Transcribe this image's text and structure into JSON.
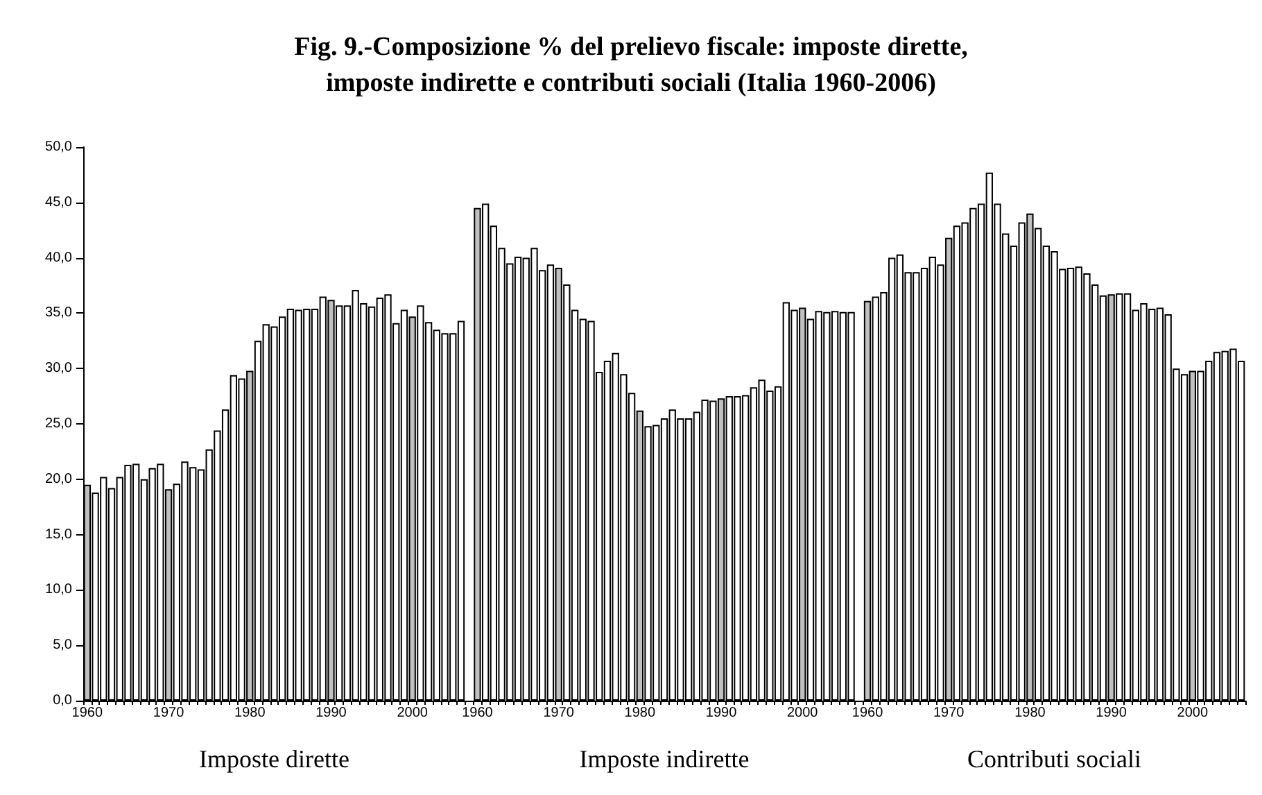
{
  "chart_data": {
    "type": "bar",
    "title": "Fig. 9.-Composizione % del prelievo fiscale: imposte dirette,\nimposte indirette e contributi sociali (Italia 1960-2006)",
    "categories": [
      "1960",
      null,
      null,
      null,
      null,
      null,
      null,
      null,
      null,
      null,
      "1970",
      null,
      null,
      null,
      null,
      null,
      null,
      null,
      null,
      null,
      "1980",
      null,
      null,
      null,
      null,
      null,
      null,
      null,
      null,
      null,
      "1990",
      null,
      null,
      null,
      null,
      null,
      null,
      null,
      null,
      null,
      "2000",
      null,
      null,
      null,
      null,
      null,
      null,
      null,
      "1960",
      null,
      null,
      null,
      null,
      null,
      null,
      null,
      null,
      null,
      "1970",
      null,
      null,
      null,
      null,
      null,
      null,
      null,
      null,
      null,
      "1980",
      null,
      null,
      null,
      null,
      null,
      null,
      null,
      null,
      null,
      "1990",
      null,
      null,
      null,
      null,
      null,
      null,
      null,
      null,
      null,
      "2000",
      null,
      null,
      null,
      null,
      null,
      null,
      null,
      "1960",
      null,
      null,
      null,
      null,
      null,
      null,
      null,
      null,
      null,
      "1970",
      null,
      null,
      null,
      null,
      null,
      null,
      null,
      null,
      null,
      "1980",
      null,
      null,
      null,
      null,
      null,
      null,
      null,
      null,
      null,
      "1990",
      null,
      null,
      null,
      null,
      null,
      null,
      null,
      null,
      null,
      "2000",
      null,
      null,
      null,
      null,
      null,
      null
    ],
    "values": [
      19.5,
      18.8,
      20.2,
      19.2,
      20.2,
      21.3,
      21.4,
      20.0,
      21.0,
      21.4,
      19.1,
      19.6,
      21.6,
      21.1,
      20.9,
      22.7,
      24.4,
      26.3,
      29.4,
      29.1,
      29.8,
      32.5,
      34.0,
      33.8,
      34.7,
      35.4,
      35.3,
      35.4,
      35.4,
      36.5,
      36.2,
      35.7,
      35.7,
      37.1,
      35.9,
      35.6,
      36.4,
      36.7,
      34.1,
      35.3,
      34.7,
      35.7,
      34.2,
      33.5,
      33.2,
      33.2,
      34.3,
      null,
      44.5,
      44.9,
      42.9,
      40.9,
      39.5,
      40.1,
      40.0,
      40.9,
      38.9,
      39.4,
      39.1,
      37.6,
      35.3,
      34.5,
      34.3,
      29.7,
      30.7,
      31.4,
      29.5,
      27.8,
      26.2,
      24.8,
      24.9,
      25.5,
      26.3,
      25.5,
      25.5,
      26.1,
      27.2,
      27.1,
      27.3,
      27.5,
      27.5,
      27.6,
      28.3,
      29.0,
      28.0,
      28.4,
      36.0,
      35.3,
      35.5,
      34.5,
      35.2,
      35.1,
      35.2,
      35.1,
      35.1,
      null,
      36.1,
      36.5,
      36.9,
      40.0,
      40.3,
      38.7,
      38.7,
      39.1,
      40.1,
      39.4,
      41.8,
      42.9,
      43.2,
      44.5,
      44.9,
      47.7,
      44.9,
      42.2,
      41.1,
      43.2,
      44.0,
      42.7,
      41.1,
      40.6,
      39.0,
      39.1,
      39.2,
      38.6,
      37.6,
      36.6,
      36.7,
      36.8,
      36.8,
      35.3,
      35.9,
      35.4,
      35.5,
      34.9,
      30.0,
      29.5,
      29.8,
      29.8,
      30.7,
      31.5,
      31.6,
      31.8,
      30.7
    ],
    "colors": [
      "#c0c0c0",
      "#ffffff",
      "#ffffff",
      "#ffffff",
      "#ffffff",
      "#ffffff",
      "#ffffff",
      "#ffffff",
      "#ffffff",
      "#ffffff",
      "#c0c0c0",
      "#ffffff",
      "#ffffff",
      "#ffffff",
      "#ffffff",
      "#ffffff",
      "#ffffff",
      "#ffffff",
      "#ffffff",
      "#ffffff",
      "#c0c0c0",
      "#ffffff",
      "#ffffff",
      "#ffffff",
      "#ffffff",
      "#ffffff",
      "#ffffff",
      "#ffffff",
      "#ffffff",
      "#ffffff",
      "#c0c0c0",
      "#ffffff",
      "#ffffff",
      "#ffffff",
      "#ffffff",
      "#ffffff",
      "#ffffff",
      "#ffffff",
      "#ffffff",
      "#ffffff",
      "#c0c0c0",
      "#ffffff",
      "#ffffff",
      "#ffffff",
      "#ffffff",
      "#ffffff",
      "#ffffff",
      null,
      "#c0c0c0",
      "#ffffff",
      "#ffffff",
      "#ffffff",
      "#ffffff",
      "#ffffff",
      "#ffffff",
      "#ffffff",
      "#ffffff",
      "#ffffff",
      "#c0c0c0",
      "#ffffff",
      "#ffffff",
      "#ffffff",
      "#ffffff",
      "#ffffff",
      "#ffffff",
      "#ffffff",
      "#ffffff",
      "#ffffff",
      "#c0c0c0",
      "#ffffff",
      "#ffffff",
      "#ffffff",
      "#ffffff",
      "#ffffff",
      "#ffffff",
      "#ffffff",
      "#ffffff",
      "#ffffff",
      "#c0c0c0",
      "#ffffff",
      "#ffffff",
      "#ffffff",
      "#ffffff",
      "#ffffff",
      "#ffffff",
      "#ffffff",
      "#ffffff",
      "#ffffff",
      "#c0c0c0",
      "#ffffff",
      "#ffffff",
      "#ffffff",
      "#ffffff",
      "#ffffff",
      "#ffffff",
      null,
      "#c0c0c0",
      "#ffffff",
      "#ffffff",
      "#ffffff",
      "#ffffff",
      "#ffffff",
      "#ffffff",
      "#ffffff",
      "#ffffff",
      "#ffffff",
      "#c0c0c0",
      "#ffffff",
      "#ffffff",
      "#ffffff",
      "#ffffff",
      "#ffffff",
      "#ffffff",
      "#ffffff",
      "#ffffff",
      "#ffffff",
      "#c0c0c0",
      "#ffffff",
      "#ffffff",
      "#ffffff",
      "#ffffff",
      "#ffffff",
      "#ffffff",
      "#ffffff",
      "#ffffff",
      "#ffffff",
      "#c0c0c0",
      "#ffffff",
      "#ffffff",
      "#ffffff",
      "#ffffff",
      "#ffffff",
      "#ffffff",
      "#ffffff",
      "#ffffff",
      "#ffffff",
      "#c0c0c0",
      "#ffffff",
      "#ffffff",
      "#ffffff",
      "#ffffff",
      "#ffffff",
      "#ffffff"
    ],
    "ylim": [
      0,
      50
    ],
    "yticks": [
      {
        "value": 0,
        "label": "0,0"
      },
      {
        "value": 5,
        "label": "5,0"
      },
      {
        "value": 10,
        "label": "10,0"
      },
      {
        "value": 15,
        "label": "15,0"
      },
      {
        "value": 20,
        "label": "20,0"
      },
      {
        "value": 25,
        "label": "25,0"
      },
      {
        "value": 30,
        "label": "30,0"
      },
      {
        "value": 35,
        "label": "35,0"
      },
      {
        "value": 40,
        "label": "40,0"
      },
      {
        "value": 45,
        "label": "45,0"
      },
      {
        "value": 50,
        "label": "50,0"
      }
    ],
    "grid": false,
    "annotations": [
      "Imposte dirette",
      "Imposte indirette",
      "Contributi sociali"
    ]
  }
}
